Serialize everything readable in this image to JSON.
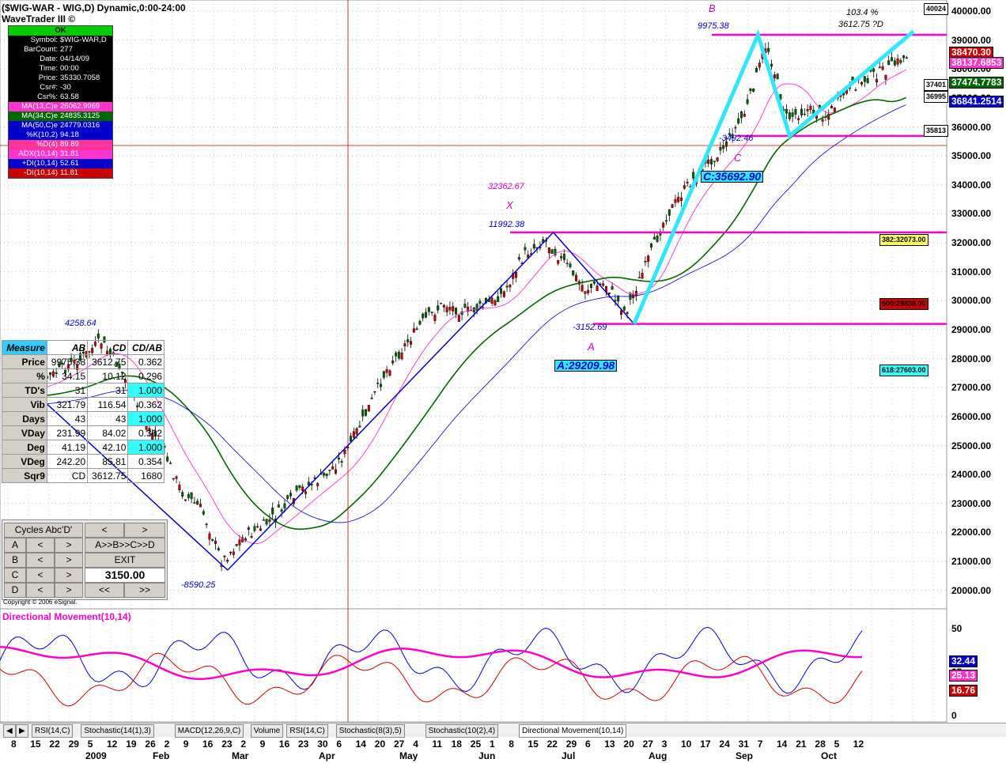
{
  "title": "($WIG-WAR - WIG,D) Dynamic,0:00-24:00",
  "subtitle": "WaveTrader III ©",
  "info_panel": {
    "status": "OK",
    "rows": [
      {
        "k": "Symbol:",
        "v": "$WIG-WAR,D",
        "color": "#fff",
        "bg": "#000"
      },
      {
        "k": "BarCount:",
        "v": "277",
        "color": "#fff",
        "bg": "#000"
      },
      {
        "k": "Date:",
        "v": "04/14/09",
        "color": "#fff",
        "bg": "#000"
      },
      {
        "k": "Time:",
        "v": "00:00",
        "color": "#fff",
        "bg": "#000"
      },
      {
        "k": "Price:",
        "v": "35330.7058",
        "color": "#fff",
        "bg": "#000"
      },
      {
        "k": "Csr#:",
        "v": "-30",
        "color": "#fff",
        "bg": "#000"
      },
      {
        "k": "Csr%:",
        "v": "63.58",
        "color": "#fff",
        "bg": "#000"
      },
      {
        "k": "MA(13,C)e",
        "v": "26062.9969",
        "color": "#fff",
        "bg": "#ff33cc"
      },
      {
        "k": "MA(34,C)e",
        "v": "24835.3125",
        "color": "#fff",
        "bg": "#006600"
      },
      {
        "k": "MA(50,C)e",
        "v": "24779.0316",
        "color": "#fff",
        "bg": "#0000cc"
      },
      {
        "k": "%K(10,2)",
        "v": "94.18",
        "color": "#fff",
        "bg": "#0000cc"
      },
      {
        "k": "%D(4)",
        "v": "89.89",
        "color": "#fff",
        "bg": "#ff3399"
      },
      {
        "k": "ADX(10,14)",
        "v": "31.81",
        "color": "#fff",
        "bg": "#ff33cc"
      },
      {
        "k": "+DI(10,14)",
        "v": "52.61",
        "color": "#fff",
        "bg": "#0000cc"
      },
      {
        "k": "-DI(10,14)",
        "v": "11.81",
        "color": "#fff",
        "bg": "#cc0000"
      }
    ]
  },
  "measure_table": {
    "headers": [
      "Measure",
      "AB",
      "CD",
      "CD/AB"
    ],
    "rows": [
      [
        "Price",
        "9975.38",
        "3612.75",
        "0.362"
      ],
      [
        "%",
        "34.15",
        "10.12",
        "0.296"
      ],
      [
        "TD's",
        "31",
        "31",
        "1.000"
      ],
      [
        "Vib",
        "321.79",
        "116.54",
        "0.362"
      ],
      [
        "Days",
        "43",
        "43",
        "1.000"
      ],
      [
        "VDay",
        "231.99",
        "84.02",
        "0.362"
      ],
      [
        "Deg",
        "41.19",
        "42.10",
        "1.000"
      ],
      [
        "VDeg",
        "242.20",
        "85.81",
        "0.354"
      ],
      [
        "Sqr9",
        "CD",
        "3612.75",
        "1680"
      ]
    ]
  },
  "abc_panel": {
    "title": "Cycles Abc'D'",
    "nav_left": "<",
    "nav_right": ">",
    "rows": [
      "A",
      "B",
      "C",
      "D"
    ],
    "cycle_label": "A>>B>>C>>D",
    "exit_label": "EXIT",
    "value": "3150.00",
    "prev": "<<",
    "next": ">>"
  },
  "copyright": "Copyright © 2006 eSignal.",
  "price_axis": {
    "labels": [
      "40000.00",
      "39000.00",
      "38000.00",
      "37000.00",
      "36000.00",
      "35000.00",
      "34000.00",
      "33000.00",
      "32000.00",
      "31000.00",
      "30000.00",
      "29000.00",
      "28000.00",
      "27000.00",
      "26000.00",
      "25000.00",
      "24000.00",
      "23000.00",
      "22000.00",
      "21000.00",
      "20000.00"
    ],
    "badges": [
      {
        "text": "40024",
        "bg": "#ffffff",
        "color": "#000"
      },
      {
        "text": "38470.30",
        "bg": "#cc0000",
        "color": "#fff"
      },
      {
        "text": "38137.6853",
        "bg": "#ff33cc",
        "color": "#fff"
      },
      {
        "text": "37401",
        "bg": "#ffffff",
        "color": "#000"
      },
      {
        "text": "37474.7783",
        "bg": "#006600",
        "color": "#fff"
      },
      {
        "text": "36995",
        "bg": "#ffffff",
        "color": "#000"
      },
      {
        "text": "36841.2514",
        "bg": "#0000cc",
        "color": "#fff"
      },
      {
        "text": "35813",
        "bg": "#ffffff",
        "color": "#000"
      }
    ],
    "fib": [
      {
        "text": "382:32073.00",
        "bg": "#ffff66",
        "color": "#000"
      },
      {
        "text": "500:29838.00",
        "bg": "#cc0000",
        "color": "#000"
      },
      {
        "text": "618:27603.00",
        "bg": "#33ffff",
        "color": "#000"
      }
    ]
  },
  "annotations": {
    "B": "B",
    "B_val": "9975.38",
    "X": "X",
    "X_val": "32362.67",
    "X_swing": "11992.38",
    "A": "A",
    "A_swing": "-3152.69",
    "A_box": "A:29209.98",
    "C": "C",
    "C_swing": "-3492.46",
    "C_box": "C:35692.90",
    "low_swing": "-8590.25",
    "feb_swing": "4258.64",
    "pct": "103.4 %",
    "d_proj": "3612.75 ?D"
  },
  "chart_data": {
    "type": "line",
    "title": "($WIG-WAR - WIG,D) Dynamic,0:00-24:00",
    "price_range": [
      19500,
      40300
    ],
    "close_path": [
      [
        "2008-12-08",
        26900
      ],
      [
        "2008-12-15",
        27200
      ],
      [
        "2008-12-29",
        28000
      ],
      [
        "2009-01-05",
        28600
      ],
      [
        "2009-01-12",
        27600
      ],
      [
        "2009-01-19",
        26000
      ],
      [
        "2009-01-26",
        25000
      ],
      [
        "2009-02-02",
        23400
      ],
      [
        "2009-02-09",
        22800
      ],
      [
        "2009-02-16",
        21000
      ],
      [
        "2009-02-23",
        21800
      ],
      [
        "2009-03-02",
        22200
      ],
      [
        "2009-03-09",
        22800
      ],
      [
        "2009-03-16",
        23500
      ],
      [
        "2009-03-23",
        23900
      ],
      [
        "2009-03-30",
        24600
      ],
      [
        "2009-04-06",
        25900
      ],
      [
        "2009-04-14",
        27600
      ],
      [
        "2009-04-20",
        28400
      ],
      [
        "2009-04-27",
        29300
      ],
      [
        "2009-05-04",
        29900
      ],
      [
        "2009-05-11",
        29600
      ],
      [
        "2009-05-18",
        29800
      ],
      [
        "2009-05-25",
        30300
      ],
      [
        "2009-06-01",
        31600
      ],
      [
        "2009-06-08",
        32100
      ],
      [
        "2009-06-15",
        31300
      ],
      [
        "2009-06-22",
        30400
      ],
      [
        "2009-06-29",
        30600
      ],
      [
        "2009-07-06",
        29600
      ],
      [
        "2009-07-13",
        31200
      ],
      [
        "2009-07-20",
        32900
      ],
      [
        "2009-07-27",
        33900
      ],
      [
        "2009-08-03",
        34700
      ],
      [
        "2009-08-10",
        35400
      ],
      [
        "2009-08-17",
        36600
      ],
      [
        "2009-08-24",
        38900
      ],
      [
        "2009-08-31",
        36300
      ],
      [
        "2009-09-07",
        36600
      ],
      [
        "2009-09-14",
        36400
      ],
      [
        "2009-09-21",
        37300
      ],
      [
        "2009-09-28",
        37700
      ],
      [
        "2009-10-05",
        38000
      ],
      [
        "2009-10-12",
        38470
      ]
    ],
    "zigzag_AB": [
      [
        "2009-02-18",
        20700
      ],
      [
        "2009-06-11",
        32360
      ],
      [
        "2009-07-09",
        29200
      ]
    ],
    "zigzag_CD": [
      [
        "2009-07-09",
        29200
      ],
      [
        "2009-08-21",
        39180
      ],
      [
        "2009-09-01",
        35690
      ],
      [
        "2009-10-14",
        39300
      ]
    ],
    "horizontal_levels": [
      39180,
      35690,
      32360,
      29200
    ],
    "dmi_panel": {
      "title": "Directional Movement(10,14)",
      "y_ticks": [
        "50",
        "25",
        "0"
      ],
      "values": {
        "plus_di": "32.44",
        "adx": "25.13",
        "minus_di": "16.76"
      }
    },
    "x_ticks": [
      "8",
      "15",
      "22",
      "29",
      "5",
      "12",
      "19",
      "26",
      "2",
      "9",
      "16",
      "23",
      "2",
      "9",
      "16",
      "23",
      "30",
      "6",
      "14",
      "20",
      "27",
      "4",
      "11",
      "18",
      "25",
      "1",
      "8",
      "15",
      "22",
      "29",
      "6",
      "13",
      "20",
      "27",
      "3",
      "10",
      "17",
      "24",
      "31",
      "7",
      "14",
      "21",
      "28",
      "5",
      "12"
    ],
    "x_months": [
      "2009",
      "Feb",
      "Mar",
      "Apr",
      "May",
      "Jun",
      "Jul",
      "Aug",
      "Sep",
      "Oct"
    ],
    "tabs": [
      "RSI(14,C)",
      "Stochastic(14(1),3)",
      "MACD(12,26,9,C)",
      "Volume",
      "RSI(14,C)",
      "Stochastic(8(3),5)",
      "Stochastic(10(2),4)",
      "Directional Movement(10,14)"
    ]
  }
}
